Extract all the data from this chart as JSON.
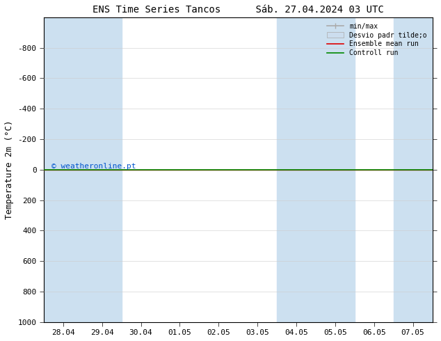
{
  "title": "ENS Time Series Tancos      Sáb. 27.04.2024 03 UTC",
  "ylabel": "Temperature 2m (°C)",
  "ylim_bottom": 1000,
  "ylim_top": -1000,
  "yticks": [
    -800,
    -600,
    -400,
    -200,
    0,
    200,
    400,
    600,
    800,
    1000
  ],
  "xlim": [
    0,
    10
  ],
  "xtick_labels": [
    "28.04",
    "29.04",
    "30.04",
    "01.05",
    "02.05",
    "03.05",
    "04.05",
    "05.05",
    "06.05",
    "07.05"
  ],
  "xtick_positions": [
    0.5,
    1.5,
    2.5,
    3.5,
    4.5,
    5.5,
    6.5,
    7.5,
    8.5,
    9.5
  ],
  "shaded_bands": [
    [
      0,
      1
    ],
    [
      1,
      2
    ],
    [
      6,
      7
    ],
    [
      7,
      8
    ],
    [
      9,
      10
    ]
  ],
  "band_color": "#cce0f0",
  "plot_bg_color": "#ffffff",
  "watermark": "© weatheronline.pt",
  "watermark_color": "#0055cc",
  "green_line_color": "#008800",
  "red_line_color": "#dd0000",
  "legend_minmax_color": "#aaaaaa",
  "legend_desvio_color": "#ccddee",
  "title_fontsize": 10,
  "tick_fontsize": 8,
  "ylabel_fontsize": 9,
  "legend_fontsize": 7
}
